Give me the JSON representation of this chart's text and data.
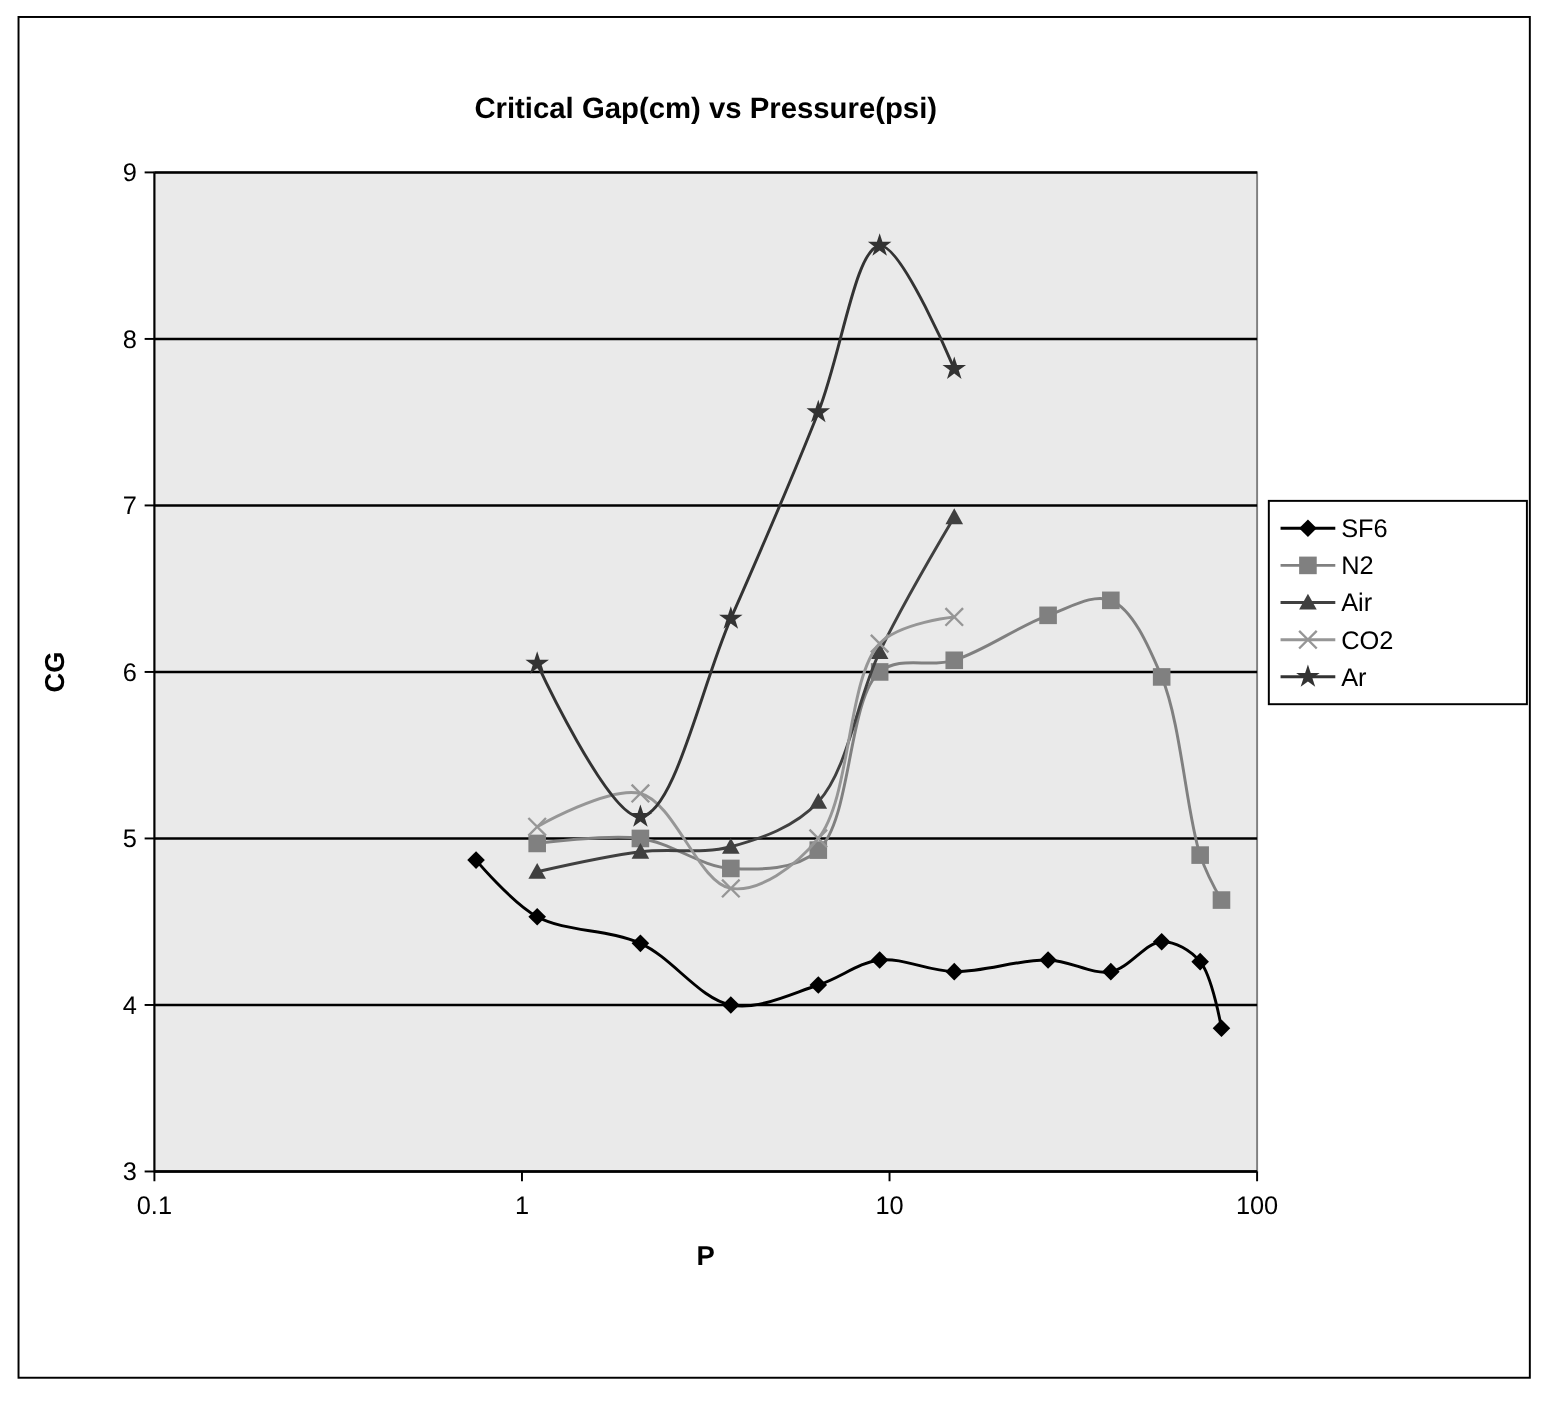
{
  "chart_data": {
    "type": "line",
    "title": "Critical Gap(cm) vs Pressure(psi)",
    "xlabel": "P",
    "ylabel": "CG",
    "log": "x",
    "xlim": [
      0.1,
      100
    ],
    "xticks": [
      0.1,
      1,
      10,
      100
    ],
    "ylim": [
      3,
      9
    ],
    "yticks": [
      3,
      4,
      5,
      6,
      7,
      8,
      9
    ],
    "grid": "y",
    "legend": "right",
    "line_style": "solid",
    "series": [
      {
        "name": "SF6",
        "color": "#000000",
        "marker": "diamond",
        "x": [
          0.75,
          1.1,
          2.1,
          3.7,
          6.4,
          9.4,
          15,
          27,
          40,
          55,
          70,
          80
        ],
        "values": [
          4.87,
          4.53,
          4.37,
          4.0,
          4.12,
          4.27,
          4.2,
          4.27,
          4.2,
          4.38,
          4.26,
          3.86
        ]
      },
      {
        "name": "N2",
        "color": "#808080",
        "marker": "square",
        "x": [
          1.1,
          2.1,
          3.7,
          6.4,
          9.4,
          15,
          27,
          40,
          55,
          70,
          80
        ],
        "values": [
          4.97,
          5.0,
          4.82,
          4.93,
          6.0,
          6.07,
          6.34,
          6.43,
          5.97,
          4.9,
          4.63
        ]
      },
      {
        "name": "Air",
        "color": "#404040",
        "marker": "triangle",
        "x": [
          1.1,
          2.1,
          3.7,
          6.4,
          9.4,
          15
        ],
        "values": [
          4.8,
          4.92,
          4.95,
          5.22,
          6.12,
          6.93
        ]
      },
      {
        "name": "CO2",
        "color": "#969696",
        "marker": "cross",
        "x": [
          1.1,
          2.1,
          3.7,
          6.4,
          9.4,
          15
        ],
        "values": [
          5.07,
          5.27,
          4.7,
          5.0,
          6.17,
          6.33
        ]
      },
      {
        "name": "Ar",
        "color": "#333333",
        "marker": "star",
        "x": [
          1.1,
          2.1,
          3.7,
          6.4,
          9.4,
          15
        ],
        "values": [
          6.05,
          5.13,
          6.32,
          7.56,
          8.56,
          7.82
        ]
      }
    ]
  }
}
